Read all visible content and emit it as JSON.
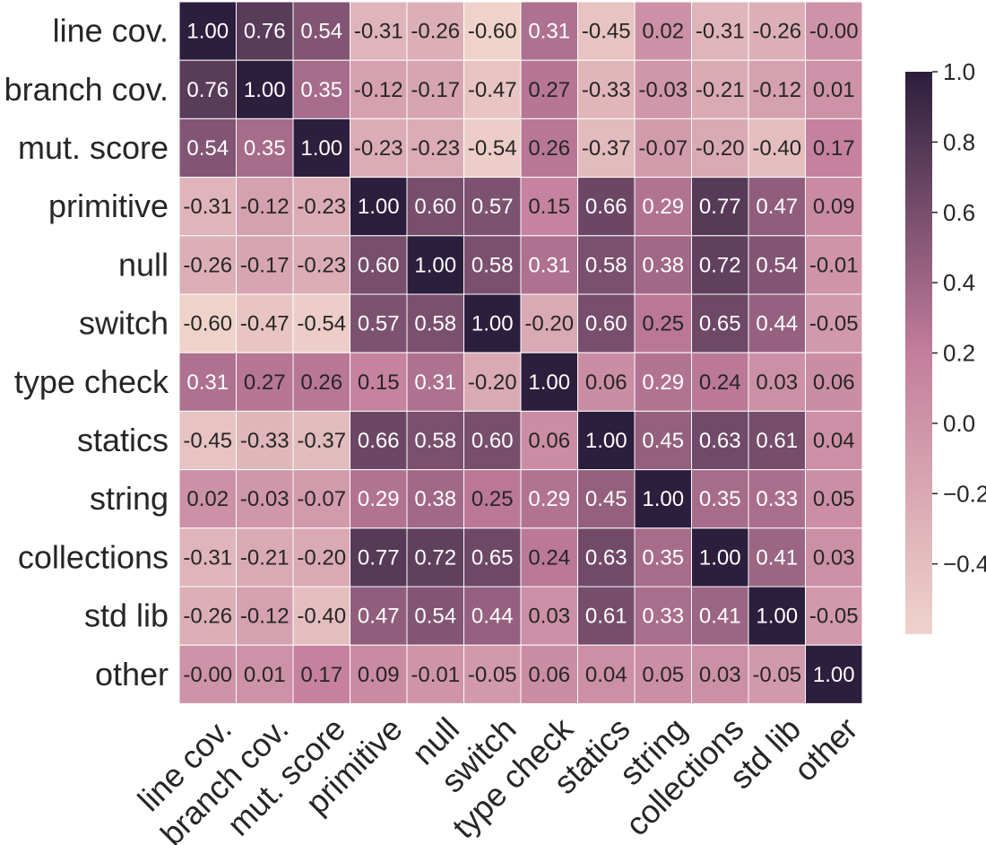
{
  "chart_data": {
    "type": "heatmap",
    "title": "",
    "xlabel": "",
    "ylabel": "",
    "labels": [
      "line cov.",
      "branch cov.",
      "mut. score",
      "primitive",
      "null",
      "switch",
      "type check",
      "statics",
      "string",
      "collections",
      "std lib",
      "other"
    ],
    "matrix": [
      [
        "1.00",
        "0.76",
        "0.54",
        "-0.31",
        "-0.26",
        "-0.60",
        "0.31",
        "-0.45",
        "0.02",
        "-0.31",
        "-0.26",
        "-0.00"
      ],
      [
        "0.76",
        "1.00",
        "0.35",
        "-0.12",
        "-0.17",
        "-0.47",
        "0.27",
        "-0.33",
        "-0.03",
        "-0.21",
        "-0.12",
        "0.01"
      ],
      [
        "0.54",
        "0.35",
        "1.00",
        "-0.23",
        "-0.23",
        "-0.54",
        "0.26",
        "-0.37",
        "-0.07",
        "-0.20",
        "-0.40",
        "0.17"
      ],
      [
        "-0.31",
        "-0.12",
        "-0.23",
        "1.00",
        "0.60",
        "0.57",
        "0.15",
        "0.66",
        "0.29",
        "0.77",
        "0.47",
        "0.09"
      ],
      [
        "-0.26",
        "-0.17",
        "-0.23",
        "0.60",
        "1.00",
        "0.58",
        "0.31",
        "0.58",
        "0.38",
        "0.72",
        "0.54",
        "-0.01"
      ],
      [
        "-0.60",
        "-0.47",
        "-0.54",
        "0.57",
        "0.58",
        "1.00",
        "-0.20",
        "0.60",
        "0.25",
        "0.65",
        "0.44",
        "-0.05"
      ],
      [
        "0.31",
        "0.27",
        "0.26",
        "0.15",
        "0.31",
        "-0.20",
        "1.00",
        "0.06",
        "0.29",
        "0.24",
        "0.03",
        "0.06"
      ],
      [
        "-0.45",
        "-0.33",
        "-0.37",
        "0.66",
        "0.58",
        "0.60",
        "0.06",
        "1.00",
        "0.45",
        "0.63",
        "0.61",
        "0.04"
      ],
      [
        "0.02",
        "-0.03",
        "-0.07",
        "0.29",
        "0.38",
        "0.25",
        "0.29",
        "0.45",
        "1.00",
        "0.35",
        "0.33",
        "0.05"
      ],
      [
        "-0.31",
        "-0.21",
        "-0.20",
        "0.77",
        "0.72",
        "0.65",
        "0.24",
        "0.63",
        "0.35",
        "1.00",
        "0.41",
        "0.03"
      ],
      [
        "-0.26",
        "-0.12",
        "-0.40",
        "0.47",
        "0.54",
        "0.44",
        "0.03",
        "0.61",
        "0.33",
        "0.41",
        "1.00",
        "-0.05"
      ],
      [
        "-0.00",
        "0.01",
        "0.17",
        "0.09",
        "-0.01",
        "-0.05",
        "0.06",
        "0.04",
        "0.05",
        "0.03",
        "-0.05",
        "1.00"
      ]
    ],
    "colorbar": {
      "range": [
        -0.6,
        1.0
      ],
      "ticks": [
        1.0,
        0.8,
        0.6,
        0.4,
        0.2,
        0.0,
        -0.2,
        -0.4
      ],
      "tick_labels": [
        "1.0",
        "0.8",
        "0.6",
        "0.4",
        "0.2",
        "0.0",
        "−0.2",
        "−0.4"
      ],
      "color_low": "#efd3cb",
      "color_mid": "#c37e9c",
      "color_high": "#2c1e3d"
    },
    "grid": true,
    "legend": "colorbar-right"
  }
}
